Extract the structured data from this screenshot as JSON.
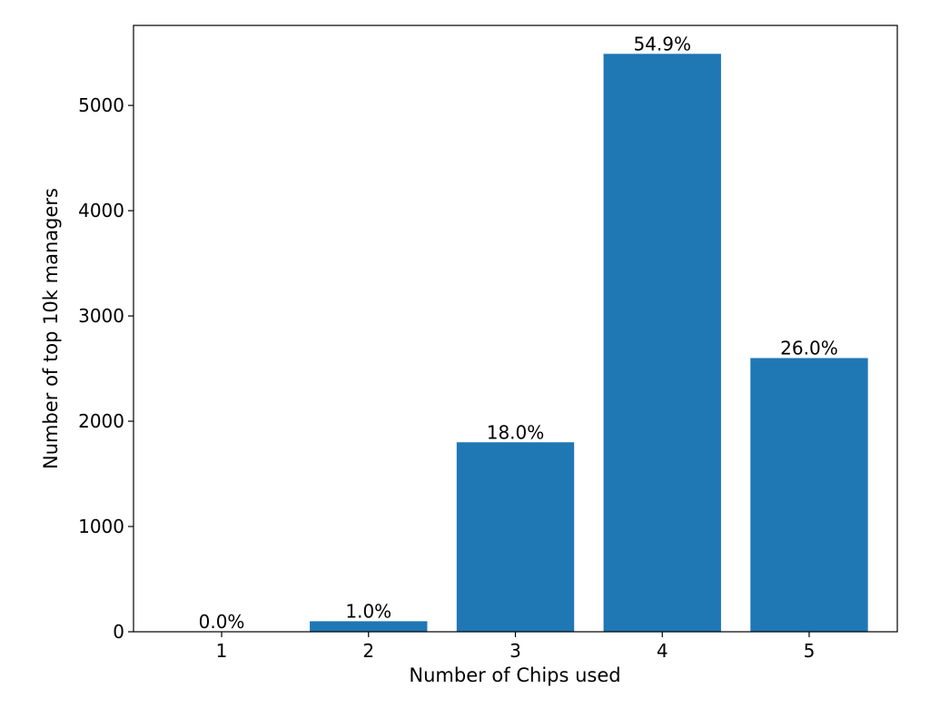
{
  "chart_data": {
    "type": "bar",
    "categories": [
      "1",
      "2",
      "3",
      "4",
      "5"
    ],
    "values": [
      0,
      100,
      1800,
      5490,
      2600
    ],
    "data_labels": [
      "0.0%",
      "1.0%",
      "18.0%",
      "54.9%",
      "26.0%"
    ],
    "xlabel": "Number of Chips used",
    "ylabel": "Number of top 10k managers",
    "ylim": [
      0,
      5760
    ],
    "yticks": [
      0,
      1000,
      2000,
      3000,
      4000,
      5000
    ],
    "grid": false,
    "bar_color": "#1f77b4"
  }
}
